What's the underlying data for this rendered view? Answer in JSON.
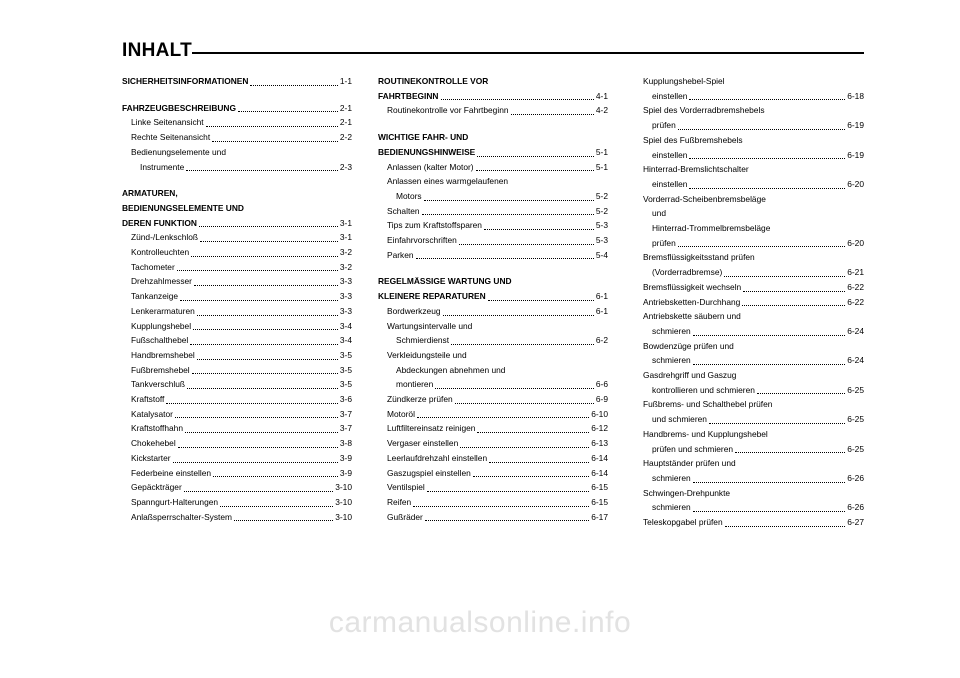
{
  "title": "INHALT",
  "watermark": "carmanualsonline.info",
  "col1": {
    "s1": {
      "head": "SICHERHEITSINFORMATIONEN",
      "pg": "1-1"
    },
    "s2": {
      "head": "FAHRZEUGBESCHREIBUNG",
      "pg": "2-1",
      "e1": {
        "t": "Linke Seitenansicht",
        "p": "2-1"
      },
      "e2": {
        "t": "Rechte Seitenansicht",
        "p": "2-2"
      },
      "e3a": "Bedienungselemente und",
      "e3b": {
        "t": "Instrumente",
        "p": "2-3"
      }
    },
    "s3": {
      "h1": "ARMATUREN,",
      "h2": "BEDIENUNGSELEMENTE UND",
      "h3": "DEREN FUNKTION",
      "pg": "3-1",
      "e1": {
        "t": "Zünd-/Lenkschloß",
        "p": "3-1"
      },
      "e2": {
        "t": "Kontrolleuchten",
        "p": "3-2"
      },
      "e3": {
        "t": "Tachometer",
        "p": "3-2"
      },
      "e4": {
        "t": "Drehzahlmesser",
        "p": "3-3"
      },
      "e5": {
        "t": "Tankanzeige",
        "p": "3-3"
      },
      "e6": {
        "t": "Lenkerarmaturen",
        "p": "3-3"
      },
      "e7": {
        "t": "Kupplungshebel",
        "p": "3-4"
      },
      "e8": {
        "t": "Fußschalthebel",
        "p": "3-4"
      },
      "e9": {
        "t": "Handbremshebel",
        "p": "3-5"
      },
      "e10": {
        "t": "Fußbremshebel",
        "p": "3-5"
      },
      "e11": {
        "t": "Tankverschluß",
        "p": "3-5"
      },
      "e12": {
        "t": "Kraftstoff",
        "p": "3-6"
      },
      "e13": {
        "t": "Katalysator",
        "p": "3-7"
      },
      "e14": {
        "t": "Kraftstoffhahn",
        "p": "3-7"
      },
      "e15": {
        "t": "Chokehebel",
        "p": "3-8"
      },
      "e16": {
        "t": "Kickstarter",
        "p": "3-9"
      },
      "e17": {
        "t": "Federbeine einstellen",
        "p": "3-9"
      },
      "e18": {
        "t": "Gepäckträger",
        "p": "3-10"
      },
      "e19": {
        "t": "Spanngurt-Halterungen",
        "p": "3-10"
      },
      "e20": {
        "t": "Anlaßsperrschalter-System",
        "p": "3-10"
      }
    }
  },
  "col2": {
    "s4": {
      "h1": "ROUTINEKONTROLLE VOR",
      "h2": "FAHRTBEGINN",
      "pg": "4-1",
      "e1": {
        "t": "Routinekontrolle vor Fahrtbeginn",
        "p": "4-2"
      }
    },
    "s5": {
      "h1": "WICHTIGE FAHR- UND",
      "h2": "BEDIENUNGSHINWEISE",
      "pg": "5-1",
      "e1": {
        "t": "Anlassen (kalter Motor)",
        "p": "5-1"
      },
      "e2a": "Anlassen eines warmgelaufenen",
      "e2b": {
        "t": "Motors",
        "p": "5-2"
      },
      "e3": {
        "t": "Schalten",
        "p": "5-2"
      },
      "e4": {
        "t": "Tips zum Kraftstoffsparen",
        "p": "5-3"
      },
      "e5": {
        "t": "Einfahrvorschriften",
        "p": "5-3"
      },
      "e6": {
        "t": "Parken",
        "p": "5-4"
      }
    },
    "s6": {
      "h1": "REGELMÄSSIGE WARTUNG UND",
      "h2": "KLEINERE REPARATUREN",
      "pg": "6-1",
      "e1": {
        "t": "Bordwerkzeug",
        "p": "6-1"
      },
      "e2a": "Wartungsintervalle und",
      "e2b": {
        "t": "Schmierdienst",
        "p": "6-2"
      },
      "e3a": "Verkleidungsteile und",
      "e3b": "Abdeckungen abnehmen und",
      "e3c": {
        "t": "montieren",
        "p": "6-6"
      },
      "e4": {
        "t": "Zündkerze prüfen",
        "p": "6-9"
      },
      "e5": {
        "t": "Motoröl",
        "p": "6-10"
      },
      "e6": {
        "t": "Luftfiltereinsatz reinigen",
        "p": "6-12"
      },
      "e7": {
        "t": "Vergaser einstellen",
        "p": "6-13"
      },
      "e8": {
        "t": "Leerlaufdrehzahl einstellen",
        "p": "6-14"
      },
      "e9": {
        "t": "Gaszugspiel einstellen",
        "p": "6-14"
      },
      "e10": {
        "t": "Ventilspiel",
        "p": "6-15"
      },
      "e11": {
        "t": "Reifen",
        "p": "6-15"
      },
      "e12": {
        "t": "Gußräder",
        "p": "6-17"
      }
    }
  },
  "col3": {
    "e1a": "Kupplungshebel-Spiel",
    "e1b": {
      "t": "einstellen",
      "p": "6-18"
    },
    "e2a": "Spiel des Vorderradbremshebels",
    "e2b": {
      "t": "prüfen",
      "p": "6-19"
    },
    "e3a": "Spiel des Fußbremshebels",
    "e3b": {
      "t": "einstellen",
      "p": "6-19"
    },
    "e4a": "Hinterrad-Bremslichtschalter",
    "e4b": {
      "t": "einstellen",
      "p": "6-20"
    },
    "e5a": "Vorderrad-Scheibenbremsbeläge",
    "e5b": "und",
    "e5c": "Hinterrad-Trommelbremsbeläge",
    "e5d": {
      "t": "prüfen",
      "p": "6-20"
    },
    "e6a": "Bremsflüssigkeitsstand prüfen",
    "e6b": {
      "t": "(Vorderradbremse)",
      "p": "6-21"
    },
    "e7": {
      "t": "Bremsflüssigkeit wechseln",
      "p": "6-22"
    },
    "e8": {
      "t": "Antriebsketten-Durchhang",
      "p": "6-22"
    },
    "e9a": "Antriebskette säubern und",
    "e9b": {
      "t": "schmieren",
      "p": "6-24"
    },
    "e10a": "Bowdenzüge prüfen und",
    "e10b": {
      "t": "schmieren",
      "p": "6-24"
    },
    "e11a": "Gasdrehgriff und Gaszug",
    "e11b": {
      "t": "kontrollieren und schmieren",
      "p": "6-25"
    },
    "e12a": "Fußbrems- und Schalthebel prüfen",
    "e12b": {
      "t": "und schmieren",
      "p": "6-25"
    },
    "e13a": "Handbrems- und Kupplungshebel",
    "e13b": {
      "t": "prüfen und schmieren",
      "p": "6-25"
    },
    "e14a": "Hauptständer prüfen und",
    "e14b": {
      "t": "schmieren",
      "p": "6-26"
    },
    "e15a": "Schwingen-Drehpunkte",
    "e15b": {
      "t": "schmieren",
      "p": "6-26"
    },
    "e16": {
      "t": "Teleskopgabel prüfen",
      "p": "6-27"
    }
  }
}
